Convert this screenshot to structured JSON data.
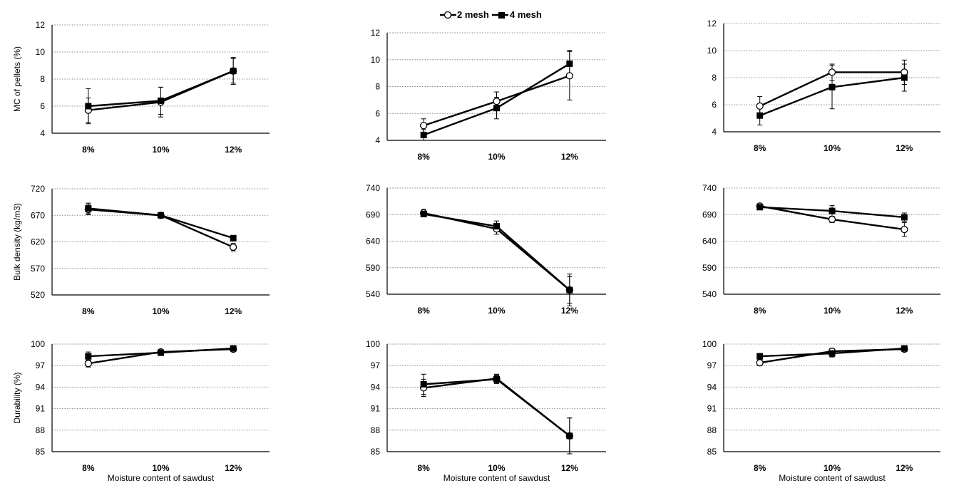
{
  "legend": {
    "series_a": "2 mesh",
    "series_b": "4 mesh"
  },
  "x_axis_label": "Moisture content of sawdust",
  "chart_data": [
    {
      "type": "line",
      "categories": [
        "8%",
        "10%",
        "12%"
      ],
      "ylabel": "MC of pellets (%)",
      "xlabel": "",
      "ylim": [
        4,
        12
      ],
      "yticks": [
        4,
        6,
        8,
        10,
        12
      ],
      "series": [
        {
          "name": "2 mesh",
          "marker": "circle-open",
          "values": [
            5.7,
            6.3,
            8.6
          ],
          "err": [
            0.9,
            1.1,
            1.0
          ]
        },
        {
          "name": "4 mesh",
          "marker": "square-filled",
          "values": [
            6.0,
            6.4,
            8.6
          ],
          "err": [
            1.3,
            1.0,
            0.9
          ]
        }
      ]
    },
    {
      "type": "line",
      "categories": [
        "8%",
        "10%",
        "12%"
      ],
      "ylabel": "",
      "xlabel": "",
      "ylim": [
        4,
        12
      ],
      "yticks": [
        4,
        6,
        8,
        10,
        12
      ],
      "series": [
        {
          "name": "2 mesh",
          "marker": "circle-open",
          "values": [
            5.1,
            6.9,
            8.8
          ],
          "err": [
            0.5,
            0.7,
            1.8
          ]
        },
        {
          "name": "4 mesh",
          "marker": "square-filled",
          "values": [
            4.4,
            6.4,
            9.7
          ],
          "err": [
            0.4,
            0.8,
            1.0
          ]
        }
      ]
    },
    {
      "type": "line",
      "categories": [
        "8%",
        "10%",
        "12%"
      ],
      "ylabel": "",
      "xlabel": "",
      "ylim": [
        4,
        12
      ],
      "yticks": [
        4,
        6,
        8,
        10,
        12
      ],
      "series": [
        {
          "name": "2 mesh",
          "marker": "circle-open",
          "values": [
            5.9,
            8.4,
            8.4
          ],
          "err": [
            0.7,
            0.6,
            0.9
          ]
        },
        {
          "name": "4 mesh",
          "marker": "square-filled",
          "values": [
            5.2,
            7.3,
            8.0
          ],
          "err": [
            0.7,
            1.6,
            1.0
          ]
        }
      ]
    },
    {
      "type": "line",
      "categories": [
        "8%",
        "10%",
        "12%"
      ],
      "ylabel": "Bulk density (kg/m3)",
      "xlabel": "",
      "ylim": [
        520,
        720
      ],
      "yticks": [
        520,
        570,
        620,
        670,
        720
      ],
      "series": [
        {
          "name": "2 mesh",
          "marker": "circle-open",
          "values": [
            681,
            670,
            610
          ],
          "err": [
            10,
            4,
            7
          ]
        },
        {
          "name": "4 mesh",
          "marker": "square-filled",
          "values": [
            683,
            670,
            627
          ],
          "err": [
            10,
            3,
            3
          ]
        }
      ]
    },
    {
      "type": "line",
      "categories": [
        "8%",
        "10%",
        "12%"
      ],
      "ylabel": "",
      "xlabel": "",
      "ylim": [
        540,
        740
      ],
      "yticks": [
        540,
        590,
        640,
        690,
        740
      ],
      "series": [
        {
          "name": "2 mesh",
          "marker": "circle-open",
          "values": [
            693,
            663,
            548
          ],
          "err": [
            7,
            10,
            25
          ]
        },
        {
          "name": "4 mesh",
          "marker": "square-filled",
          "values": [
            691,
            668,
            548
          ],
          "err": [
            5,
            10,
            30
          ]
        }
      ]
    },
    {
      "type": "line",
      "categories": [
        "8%",
        "10%",
        "12%"
      ],
      "ylabel": "",
      "xlabel": "",
      "ylim": [
        540,
        740
      ],
      "yticks": [
        540,
        590,
        640,
        690,
        740
      ],
      "series": [
        {
          "name": "2 mesh",
          "marker": "circle-open",
          "values": [
            706,
            681,
            662
          ],
          "err": [
            4,
            6,
            13
          ]
        },
        {
          "name": "4 mesh",
          "marker": "square-filled",
          "values": [
            704,
            697,
            685
          ],
          "err": [
            4,
            10,
            8
          ]
        }
      ]
    },
    {
      "type": "line",
      "categories": [
        "8%",
        "10%",
        "12%"
      ],
      "ylabel": "Durability (%)",
      "xlabel": "Moisture content of sawdust",
      "ylim": [
        85,
        100
      ],
      "yticks": [
        85,
        88,
        91,
        94,
        97,
        100
      ],
      "series": [
        {
          "name": "2 mesh",
          "marker": "circle-open",
          "values": [
            97.3,
            98.9,
            99.3
          ],
          "err": [
            0.5,
            0.3,
            0.2
          ]
        },
        {
          "name": "4 mesh",
          "marker": "square-filled",
          "values": [
            98.3,
            98.8,
            99.4
          ],
          "err": [
            0.6,
            0.4,
            0.2
          ]
        }
      ]
    },
    {
      "type": "line",
      "categories": [
        "8%",
        "10%",
        "12%"
      ],
      "ylabel": "",
      "xlabel": "Moisture content of sawdust",
      "ylim": [
        85,
        100
      ],
      "yticks": [
        85,
        88,
        91,
        94,
        97,
        100
      ],
      "series": [
        {
          "name": "2 mesh",
          "marker": "circle-open",
          "values": [
            93.9,
            95.2,
            87.2
          ],
          "err": [
            1.2,
            0.6,
            2.5
          ]
        },
        {
          "name": "4 mesh",
          "marker": "square-filled",
          "values": [
            94.4,
            95.1,
            87.2
          ],
          "err": [
            1.4,
            0.6,
            2.5
          ]
        }
      ]
    },
    {
      "type": "line",
      "categories": [
        "8%",
        "10%",
        "12%"
      ],
      "ylabel": "",
      "xlabel": "Moisture content of sawdust",
      "ylim": [
        85,
        100
      ],
      "yticks": [
        85,
        88,
        91,
        94,
        97,
        100
      ],
      "series": [
        {
          "name": "2 mesh",
          "marker": "circle-open",
          "values": [
            97.4,
            99.0,
            99.3
          ],
          "err": [
            0.4,
            0.4,
            0.3
          ]
        },
        {
          "name": "4 mesh",
          "marker": "square-filled",
          "values": [
            98.3,
            98.7,
            99.4
          ],
          "err": [
            0.4,
            0.5,
            0.3
          ]
        }
      ]
    }
  ]
}
